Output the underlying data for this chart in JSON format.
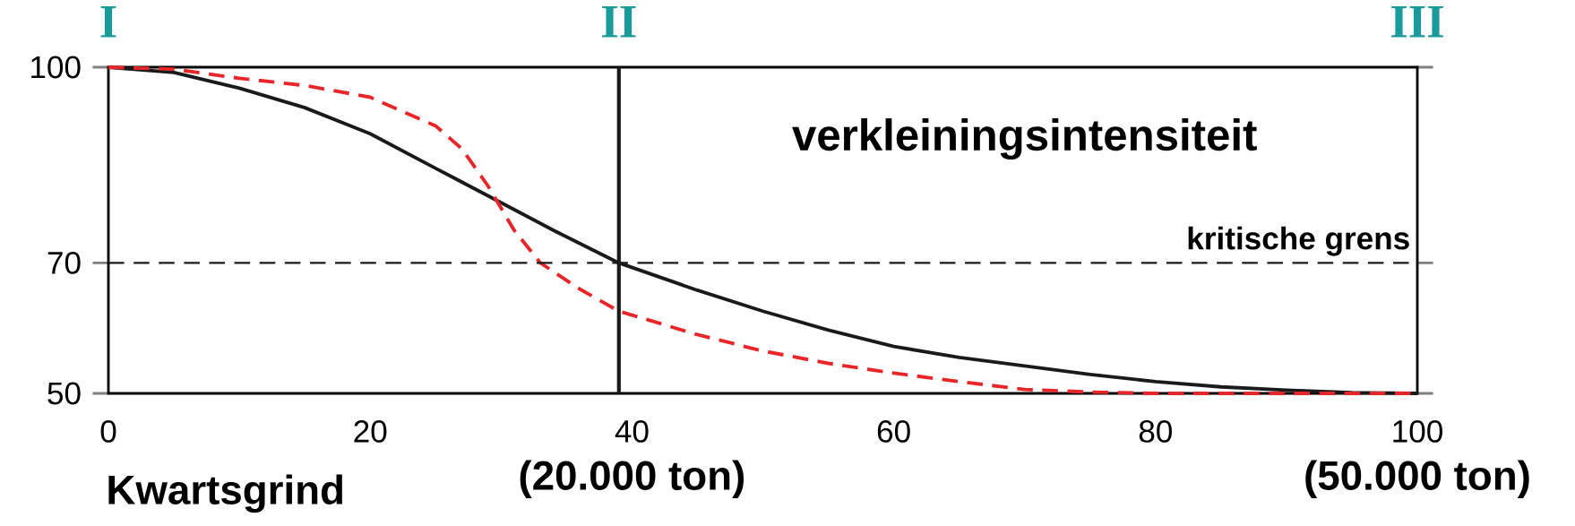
{
  "chart_data": {
    "type": "line",
    "xlabel": "Kwartsgrind",
    "xlim": [
      0,
      100
    ],
    "xticks": [
      0,
      20,
      40,
      60,
      80,
      100
    ],
    "ylim": [
      50,
      100
    ],
    "yticks": [
      50,
      70,
      100
    ],
    "series": [
      {
        "color": "#1a1a1a",
        "line_style": "solid",
        "x": [
          0,
          5,
          10,
          15,
          20,
          25,
          29,
          34,
          39,
          45,
          50,
          55,
          60,
          65,
          70,
          75,
          80,
          85,
          90,
          95,
          100
        ],
        "values": [
          100,
          99.2,
          96.8,
          93.8,
          89.8,
          84.5,
          80.3,
          75.0,
          70.0,
          65.8,
          62.6,
          59.7,
          57.2,
          55.5,
          54.2,
          52.9,
          51.8,
          51.0,
          50.5,
          50.1,
          50
        ]
      },
      {
        "color": "#e8262a",
        "line_style": "dashed",
        "x": [
          0,
          5,
          10,
          15,
          20,
          25,
          27,
          29,
          31,
          33,
          36,
          39,
          45,
          50,
          55,
          60,
          65,
          70,
          75,
          80,
          100
        ],
        "values": [
          100,
          99.7,
          98.3,
          97.2,
          95.4,
          91.0,
          87.5,
          81.8,
          75.0,
          70.0,
          66.0,
          62.6,
          59.0,
          56.5,
          54.6,
          53.1,
          51.8,
          50.6,
          50.2,
          50,
          50
        ]
      }
    ],
    "ref_lines": [
      {
        "axis": "y",
        "value": 70,
        "label": "kritische grens",
        "color": "#1a1a1a",
        "line_style": "dashed"
      },
      {
        "axis": "x",
        "value": 39,
        "label": "II",
        "color": "#1a1a1a",
        "line_style": "solid"
      }
    ],
    "annotations": [
      "I",
      "III",
      "verkleiningsintensiteit",
      "(20.000 ton)",
      "(50.000 ton)"
    ]
  }
}
